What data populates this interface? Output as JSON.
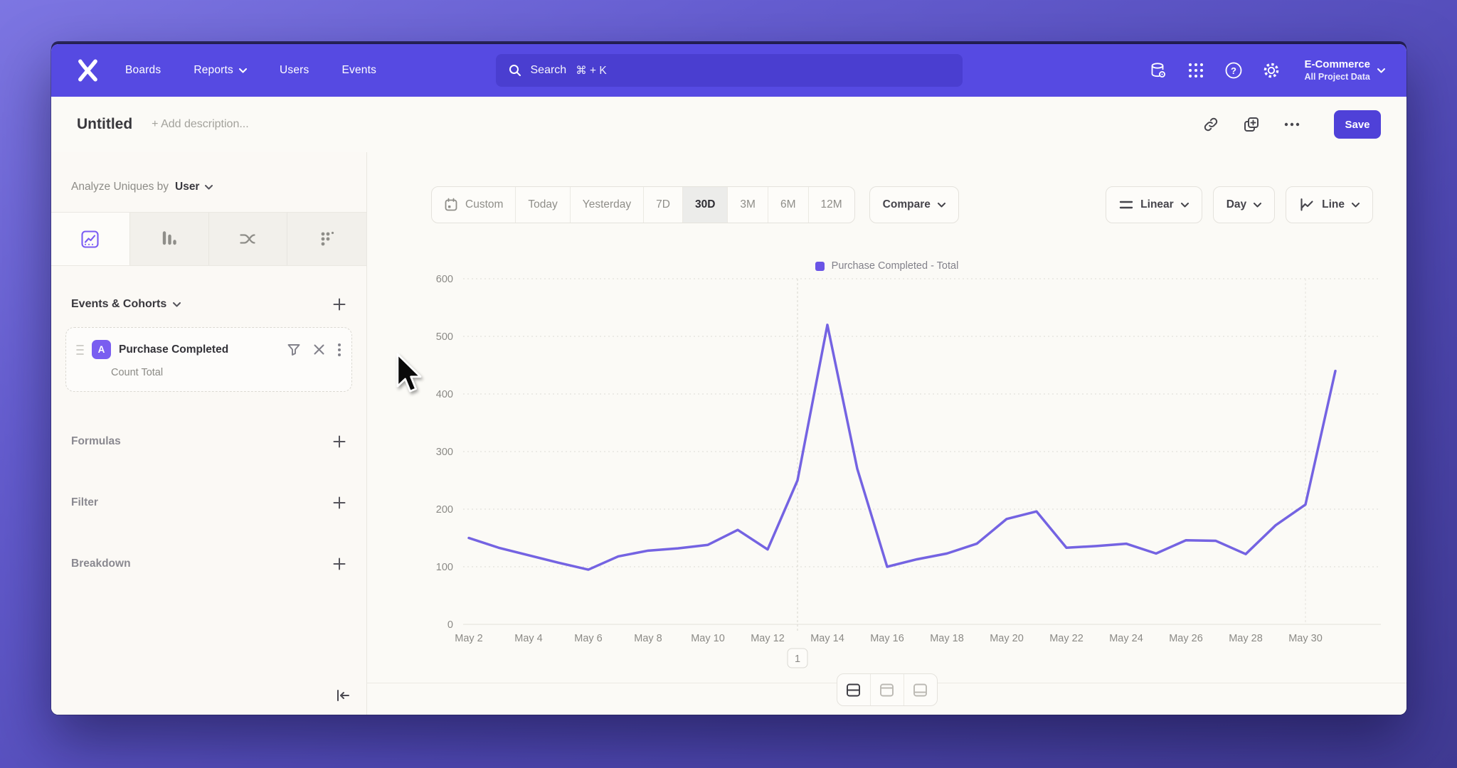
{
  "nav": {
    "items": [
      "Boards",
      "Reports",
      "Users",
      "Events"
    ],
    "search": {
      "placeholder": "Search",
      "shortcut": "⌘ + K"
    },
    "project": {
      "name": "E-Commerce",
      "subtitle": "All Project Data"
    }
  },
  "header": {
    "title": "Untitled",
    "description_placeholder": "+ Add description...",
    "save_label": "Save"
  },
  "sidebar": {
    "analyze": {
      "prefix": "Analyze Uniques by",
      "value": "User"
    },
    "sections": {
      "events": "Events & Cohorts",
      "formulas": "Formulas",
      "filter": "Filter",
      "breakdown": "Breakdown"
    },
    "event_card": {
      "badge": "A",
      "name": "Purchase Completed",
      "metric": "Count Total"
    }
  },
  "toolbar": {
    "ranges": [
      "Custom",
      "Today",
      "Yesterday",
      "7D",
      "30D",
      "3M",
      "6M",
      "12M"
    ],
    "selected_range": "30D",
    "compare_label": "Compare",
    "scale_label": "Linear",
    "interval_label": "Day",
    "chart_type_label": "Line"
  },
  "icons": {
    "help": "?"
  },
  "chart_data": {
    "type": "line",
    "legend": "Purchase Completed - Total",
    "x": [
      "May 2",
      "May 3",
      "May 4",
      "May 5",
      "May 6",
      "May 7",
      "May 8",
      "May 9",
      "May 10",
      "May 11",
      "May 12",
      "May 13",
      "May 14",
      "May 15",
      "May 16",
      "May 17",
      "May 18",
      "May 19",
      "May 20",
      "May 21",
      "May 22",
      "May 23",
      "May 24",
      "May 25",
      "May 26",
      "May 27",
      "May 28",
      "May 29",
      "May 30",
      "May 31"
    ],
    "values": [
      150,
      133,
      120,
      107,
      95,
      118,
      128,
      132,
      138,
      164,
      130,
      250,
      520,
      270,
      100,
      113,
      123,
      140,
      183,
      196,
      133,
      136,
      140,
      123,
      146,
      145,
      122,
      172,
      208,
      440
    ],
    "yticks": [
      0,
      100,
      200,
      300,
      400,
      500,
      600
    ],
    "ylim": [
      0,
      600
    ],
    "x_tick_step": 2,
    "grid": true,
    "legend_position": "top-center",
    "annotation": {
      "label": "1",
      "index": 11
    },
    "incomplete_marker_index": 28,
    "line_color": "#7463e2"
  }
}
